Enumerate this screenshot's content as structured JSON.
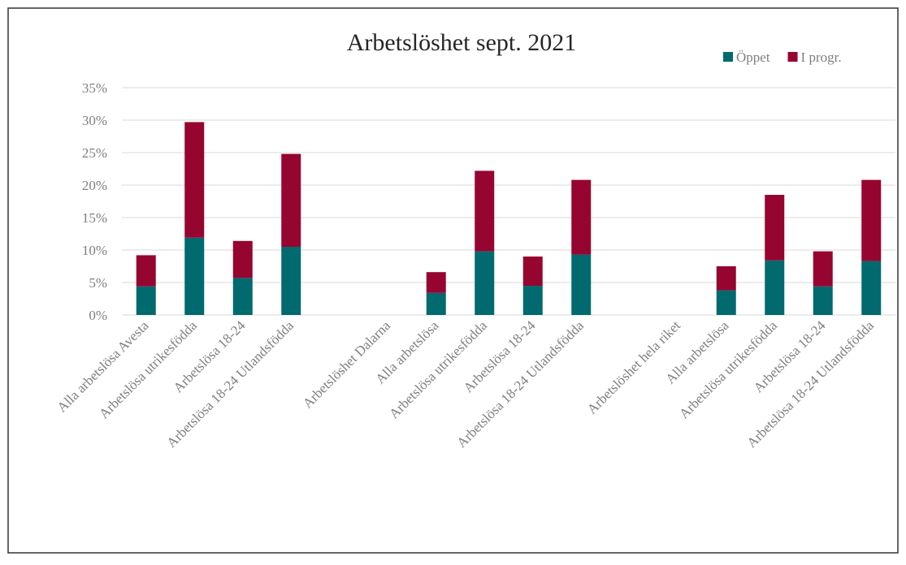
{
  "chart_data": {
    "type": "stacked-bar",
    "title": "Arbetslöshet sept. 2021",
    "categories": [
      "Alla arbetslösa Avesta",
      "Arbetslösa utrikesfödda",
      "Arbetslösa 18-24",
      "Arbetslösa 18-24 Utlandsfödda",
      null,
      "Arbetslöshet Dalarna",
      "Alla arbetslösa",
      "Arbetslösa utrikesfödda",
      "Arbetslösa 18-24",
      "Arbetslösa 18-24 Utlandsfödda",
      null,
      "Arbetslöshet hela riket",
      "Alla arbetslösa",
      "Arbetslösa utrikesfödda",
      "Arbetslösa 18-24",
      "Arbetslösa 18-24 Utlandsfödda"
    ],
    "series": [
      {
        "name": "Öppet",
        "color": "#006a6e",
        "values": [
          4.4,
          11.9,
          5.7,
          10.5,
          null,
          null,
          3.4,
          9.8,
          4.5,
          9.3,
          null,
          null,
          3.8,
          8.4,
          4.4,
          8.3
        ]
      },
      {
        "name": "I progr.",
        "color": "#960530",
        "values": [
          4.8,
          17.8,
          5.7,
          14.3,
          null,
          null,
          3.2,
          12.4,
          4.5,
          11.5,
          null,
          null,
          3.7,
          10.1,
          5.4,
          12.5
        ]
      }
    ],
    "ylim": [
      0,
      35
    ],
    "yticks": [
      {
        "value": 0,
        "label": "0%"
      },
      {
        "value": 5,
        "label": "5%"
      },
      {
        "value": 10,
        "label": "10%"
      },
      {
        "value": 15,
        "label": "15%"
      },
      {
        "value": 20,
        "label": "20%"
      },
      {
        "value": 25,
        "label": "25%"
      },
      {
        "value": 30,
        "label": "30%"
      },
      {
        "value": 35,
        "label": "35%"
      }
    ],
    "grid": true,
    "legend": "top-right"
  }
}
